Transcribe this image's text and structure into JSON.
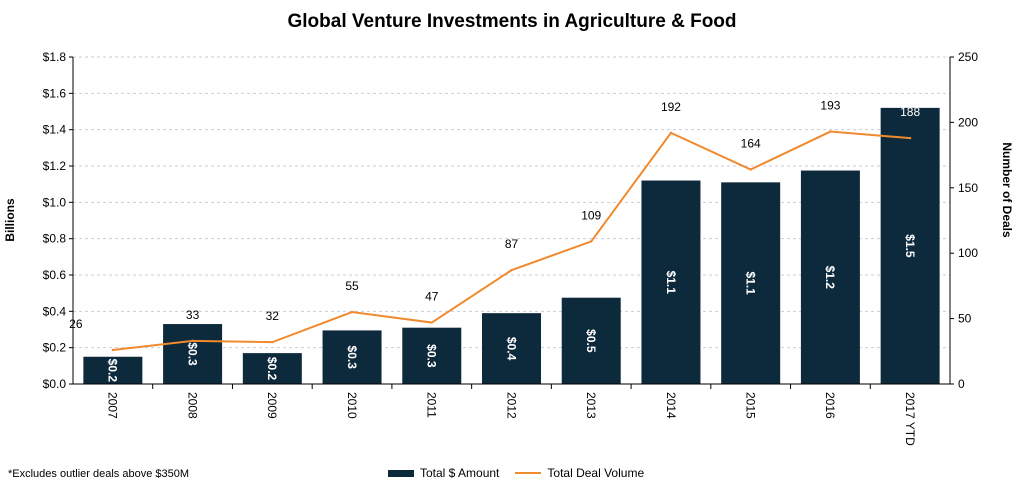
{
  "chart_data": {
    "type": "bar",
    "title": "Global Venture Investments in Agriculture & Food",
    "categories": [
      "2007",
      "2008",
      "2009",
      "2010",
      "2011",
      "2012",
      "2013",
      "2014",
      "2015",
      "2016",
      "2017 YTD"
    ],
    "series": [
      {
        "name": "Total $ Amount",
        "type": "bar",
        "axis": "left",
        "values": [
          0.15,
          0.33,
          0.17,
          0.295,
          0.31,
          0.39,
          0.475,
          1.12,
          1.11,
          1.175,
          1.52
        ],
        "labels": [
          "$0.2",
          "$0.3",
          "$0.2",
          "$0.3",
          "$0.3",
          "$0.4",
          "$0.5",
          "$1.1",
          "$1.1",
          "$1.2",
          "$1.5"
        ],
        "color": "#0d2a3d"
      },
      {
        "name": "Total Deal Volume",
        "type": "line",
        "axis": "right",
        "values": [
          26,
          33,
          32,
          55,
          47,
          87,
          109,
          192,
          164,
          193,
          188
        ],
        "color": "#f08a2c"
      }
    ],
    "ylabel": "Billions",
    "ylabel_right": "Number of Deals",
    "ylim": [
      0,
      1.8
    ],
    "ylim_right": [
      0,
      250
    ],
    "yticks": [
      "$0.0",
      "$0.2",
      "$0.4",
      "$0.6",
      "$0.8",
      "$1.0",
      "$1.2",
      "$1.4",
      "$1.6",
      "$1.8"
    ],
    "yticks_right": [
      "0",
      "50",
      "100",
      "150",
      "200",
      "250"
    ],
    "grid": true,
    "legend_position": "bottom"
  },
  "footnote": "*Excludes outlier deals above $350M"
}
